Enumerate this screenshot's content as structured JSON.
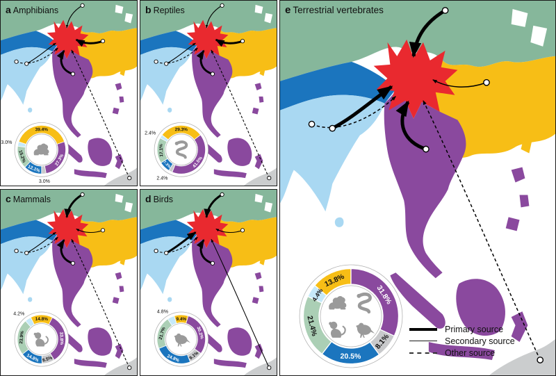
{
  "colors": {
    "map_green": "#86B79B",
    "map_yellow": "#F7BE16",
    "map_red": "#E9292F",
    "map_blue": "#1B75BE",
    "map_lightblue": "#A9D8F2",
    "map_purple": "#8A499E",
    "land_gray": "#CBCDCE",
    "donut_green": "#ABCFB5",
    "donut_lightblue": "#C6E9F9",
    "donut_gray": "#C8C9CB",
    "donut_purple": "#8A499E",
    "donut_blue": "#1B75BE",
    "donut_yellow": "#F7BE16",
    "icon_gray": "#9A9A9A"
  },
  "legend": {
    "items": [
      {
        "label": "Primary source",
        "style": "primary"
      },
      {
        "label": "Secondary source",
        "style": "secondary"
      },
      {
        "label": "Other source",
        "style": "other"
      }
    ]
  },
  "panels": [
    {
      "letter": "a",
      "title": "Amphibians",
      "icons": [
        "frog-icon"
      ],
      "arrows": {
        "green": "secondary",
        "yellow": "primary",
        "blue": "secondary",
        "purple": "primary",
        "lightblue": "other",
        "far": "other"
      },
      "donut": {
        "start_deg": -81.7,
        "slices": [
          {
            "key": "lightblue",
            "pct": 3.0,
            "label": "3.0%",
            "outside": true
          },
          {
            "key": "yellow",
            "pct": 39.4,
            "label": "39.4%",
            "outside": false
          },
          {
            "key": "purple",
            "pct": 27.3,
            "label": "27.3%",
            "outside": false
          },
          {
            "key": "gray",
            "pct": 3.0,
            "label": "3.0%",
            "outside": true
          },
          {
            "key": "blue",
            "pct": 12.1,
            "label": "12.1%",
            "outside": false
          },
          {
            "key": "green",
            "pct": 15.2,
            "label": "15.2%",
            "outside": false
          }
        ]
      }
    },
    {
      "letter": "b",
      "title": "Reptiles",
      "icons": [
        "snake-icon"
      ],
      "arrows": {
        "green": "secondary",
        "yellow": "primary",
        "blue": "secondary",
        "purple": "primary",
        "lightblue": "other",
        "far": "other"
      },
      "donut": {
        "start_deg": -61.4,
        "slices": [
          {
            "key": "lightblue",
            "pct": 2.4,
            "label": "2.4%",
            "outside": true
          },
          {
            "key": "yellow",
            "pct": 29.3,
            "label": "29.3%",
            "outside": false
          },
          {
            "key": "purple",
            "pct": 41.5,
            "label": "41.5%",
            "outside": false
          },
          {
            "key": "gray",
            "pct": 2.4,
            "label": "2.4%",
            "outside": true
          },
          {
            "key": "blue",
            "pct": 7.3,
            "label": "7.3%",
            "outside": false
          },
          {
            "key": "green",
            "pct": 17.1,
            "label": "17.1%",
            "outside": false
          }
        ]
      }
    },
    {
      "letter": "c",
      "title": "Mammals",
      "icons": [
        "monkey-icon"
      ],
      "arrows": {
        "green": "primary",
        "yellow": "secondary",
        "blue": "secondary",
        "purple": "primary",
        "lightblue": "other",
        "far": "other"
      },
      "donut": {
        "start_deg": -41.7,
        "slices": [
          {
            "key": "lightblue",
            "pct": 4.2,
            "label": "4.2%",
            "outside": true
          },
          {
            "key": "yellow",
            "pct": 14.8,
            "label": "14.8%",
            "outside": false
          },
          {
            "key": "purple",
            "pct": 33.8,
            "label": "33.8%",
            "outside": false
          },
          {
            "key": "gray",
            "pct": 8.5,
            "label": "8.5%",
            "outside": false
          },
          {
            "key": "blue",
            "pct": 14.8,
            "label": "14.8%",
            "outside": false
          },
          {
            "key": "green",
            "pct": 23.9,
            "label": "23.9%",
            "outside": false
          }
        ]
      }
    },
    {
      "letter": "d",
      "title": "Birds",
      "icons": [
        "bird-icon"
      ],
      "arrows": {
        "green": "primary",
        "yellow": "secondary",
        "blue": "primary",
        "purple": "primary",
        "lightblue": "other",
        "far": "secondary"
      },
      "donut": {
        "start_deg": -34.2,
        "slices": [
          {
            "key": "lightblue",
            "pct": 4.8,
            "label": "4.8%",
            "outside": true
          },
          {
            "key": "yellow",
            "pct": 9.4,
            "label": "9.4%",
            "outside": false
          },
          {
            "key": "purple",
            "pct": 30.2,
            "label": "30.2%",
            "outside": false
          },
          {
            "key": "gray",
            "pct": 9.1,
            "label": "9.1%",
            "outside": false
          },
          {
            "key": "blue",
            "pct": 24.8,
            "label": "24.8%",
            "outside": false
          },
          {
            "key": "green",
            "pct": 21.7,
            "label": "21.7%",
            "outside": false
          }
        ]
      }
    },
    {
      "letter": "e",
      "title": "Terrestrial vertebrates",
      "icons": [
        "frog-icon",
        "snake-icon",
        "monkey-icon",
        "bird-icon"
      ],
      "arrows": {
        "green": "primary",
        "yellow": "secondary",
        "blue": "primary",
        "purple": "primary",
        "lightblue": "other",
        "far": "other"
      },
      "donut": {
        "start_deg": -65.5,
        "slices": [
          {
            "key": "lightblue",
            "pct": 4.4,
            "label": "4.4%",
            "outside": false
          },
          {
            "key": "yellow",
            "pct": 13.8,
            "label": "13.8%",
            "outside": false
          },
          {
            "key": "purple",
            "pct": 31.8,
            "label": "31.8%",
            "outside": false
          },
          {
            "key": "gray",
            "pct": 8.1,
            "label": "8.1%",
            "outside": false
          },
          {
            "key": "blue",
            "pct": 20.5,
            "label": "20.5%",
            "outside": false
          },
          {
            "key": "green",
            "pct": 21.4,
            "label": "21.4%",
            "outside": false
          }
        ]
      }
    }
  ],
  "chart_data": [
    {
      "type": "pie",
      "title": "a Amphibians",
      "categories": [
        "light-blue",
        "yellow",
        "purple",
        "gray",
        "blue",
        "green"
      ],
      "values": [
        3.0,
        39.4,
        27.3,
        3.0,
        12.1,
        15.2
      ]
    },
    {
      "type": "pie",
      "title": "b Reptiles",
      "categories": [
        "light-blue",
        "yellow",
        "purple",
        "gray",
        "blue",
        "green"
      ],
      "values": [
        2.4,
        29.3,
        41.5,
        2.4,
        7.3,
        17.1
      ]
    },
    {
      "type": "pie",
      "title": "c Mammals",
      "categories": [
        "light-blue",
        "yellow",
        "purple",
        "gray",
        "blue",
        "green"
      ],
      "values": [
        4.2,
        14.8,
        33.8,
        8.5,
        14.8,
        23.9
      ]
    },
    {
      "type": "pie",
      "title": "d Birds",
      "categories": [
        "light-blue",
        "yellow",
        "purple",
        "gray",
        "blue",
        "green"
      ],
      "values": [
        4.8,
        9.4,
        30.2,
        9.1,
        24.8,
        21.7
      ]
    },
    {
      "type": "pie",
      "title": "e Terrestrial vertebrates",
      "categories": [
        "light-blue",
        "yellow",
        "purple",
        "gray",
        "blue",
        "green"
      ],
      "values": [
        4.4,
        13.8,
        31.8,
        8.1,
        20.5,
        21.4
      ]
    }
  ]
}
